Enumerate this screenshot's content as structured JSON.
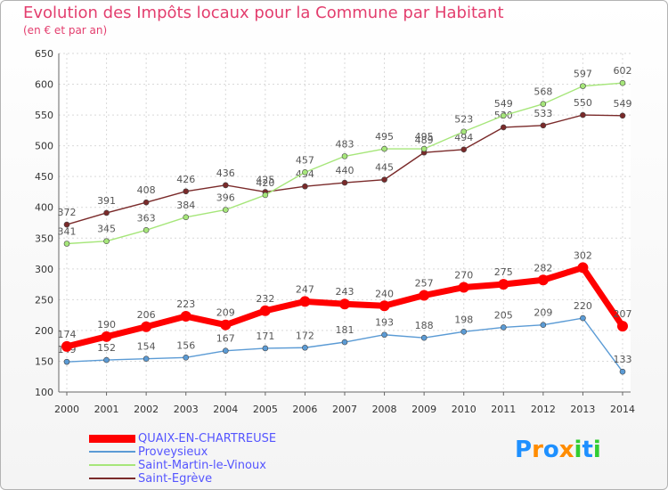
{
  "title": "Evolution des Impôts locaux pour la Commune par Habitant",
  "subtitle": "(en € et par an)",
  "logo": {
    "text": "Proxiti",
    "letters": [
      "P",
      "r",
      "o",
      "x",
      "i",
      "t",
      "i"
    ],
    "colors": [
      "#1e90ff",
      "#ff8c00",
      "#1e90ff",
      "#ff8c00",
      "#32cd32",
      "#1e90ff",
      "#32cd32"
    ]
  },
  "chart_data": {
    "type": "line",
    "x": [
      2000,
      2001,
      2002,
      2003,
      2004,
      2005,
      2006,
      2007,
      2008,
      2009,
      2010,
      2011,
      2012,
      2013,
      2014
    ],
    "ylim": [
      100,
      650
    ],
    "yticks": [
      100,
      150,
      200,
      250,
      300,
      350,
      400,
      450,
      500,
      550,
      600,
      650
    ],
    "grid": true,
    "legend_position": "bottom-left",
    "series": [
      {
        "name": "Saint-Egrève",
        "color": "#7a2a2a",
        "values": [
          372,
          391,
          408,
          426,
          436,
          425,
          434,
          440,
          445,
          489,
          494,
          530,
          533,
          550,
          549
        ]
      },
      {
        "name": "Saint-Martin-le-Vinoux",
        "color": "#a6e67a",
        "values": [
          341,
          345,
          363,
          384,
          396,
          420,
          457,
          483,
          495,
          495,
          523,
          549,
          568,
          597,
          602
        ]
      },
      {
        "name": "Proveysieux",
        "color": "#5b9bd5",
        "values": [
          149,
          152,
          154,
          156,
          167,
          171,
          172,
          181,
          193,
          188,
          198,
          205,
          209,
          220,
          133
        ]
      },
      {
        "name": "QUAIX-EN-CHARTREUSE",
        "color": "#ff0000",
        "values": [
          174,
          190,
          206,
          223,
          209,
          232,
          247,
          243,
          240,
          257,
          270,
          275,
          282,
          302,
          207
        ]
      }
    ],
    "legend_order": [
      "QUAIX-EN-CHARTREUSE",
      "Proveysieux",
      "Saint-Martin-le-Vinoux",
      "Saint-Egrève"
    ]
  }
}
